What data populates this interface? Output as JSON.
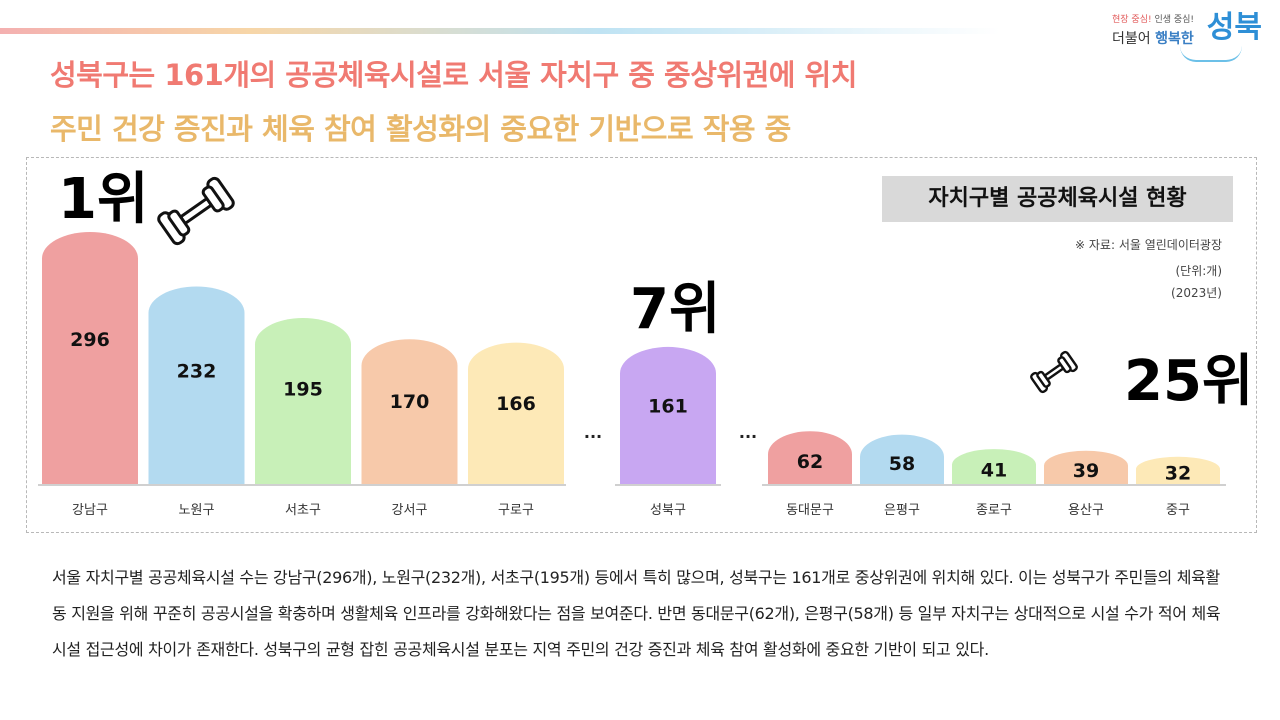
{
  "logo": {
    "slogan_a": "현장 중심!",
    "slogan_b": " 인생 중심!",
    "main_a": "더불어 ",
    "main_b": "행복한",
    "big": "성북"
  },
  "headline": {
    "line1": "성북구는 161개의 공공체육시설로 서울 자치구 중 중상위권에 위치",
    "line2": "주민 건강 증진과 체육 참여 활성화의 중요한 기반으로 작용 중"
  },
  "chart_data": {
    "type": "bar",
    "title": "자치구별 공공체육시설 현황",
    "source": "※ 자료: 서울 열린데이터광장",
    "unit": "(단위:개)",
    "year": "(2023년)",
    "categories": [
      "강남구",
      "노원구",
      "서초구",
      "강서구",
      "구로구",
      "성북구",
      "동대문구",
      "은평구",
      "종로구",
      "용산구",
      "중구"
    ],
    "values": [
      296,
      232,
      195,
      170,
      166,
      161,
      62,
      58,
      41,
      39,
      32
    ],
    "colors": [
      "#efa0a0",
      "#b3daf0",
      "#c8f0b8",
      "#f7c9aa",
      "#fde9b7",
      "#c8a7f2",
      "#efa0a0",
      "#b3daf0",
      "#c8f0b8",
      "#f7c9aa",
      "#fde9b7"
    ],
    "ellipsis": "...",
    "ranks": {
      "first": "1위",
      "seongbuk": "7위",
      "last": "25위"
    }
  },
  "body_text": "서울 자치구별 공공체육시설 수는 강남구(296개), 노원구(232개), 서초구(195개) 등에서 특히 많으며, 성북구는 161개로 중상위권에 위치해 있다. 이는 성북구가 주민들의 체육활동 지원을 위해 꾸준히 공공시설을 확충하며 생활체육 인프라를 강화해왔다는 점을 보여준다. 반면 동대문구(62개), 은평구(58개) 등 일부 자치구는 상대적으로 시설 수가 적어 체육시설 접근성에 차이가 존재한다. 성북구의 균형 잡힌 공공체육시설 분포는 지역 주민의 건강 증진과 체육 참여 활성화에 중요한 기반이 되고 있다."
}
